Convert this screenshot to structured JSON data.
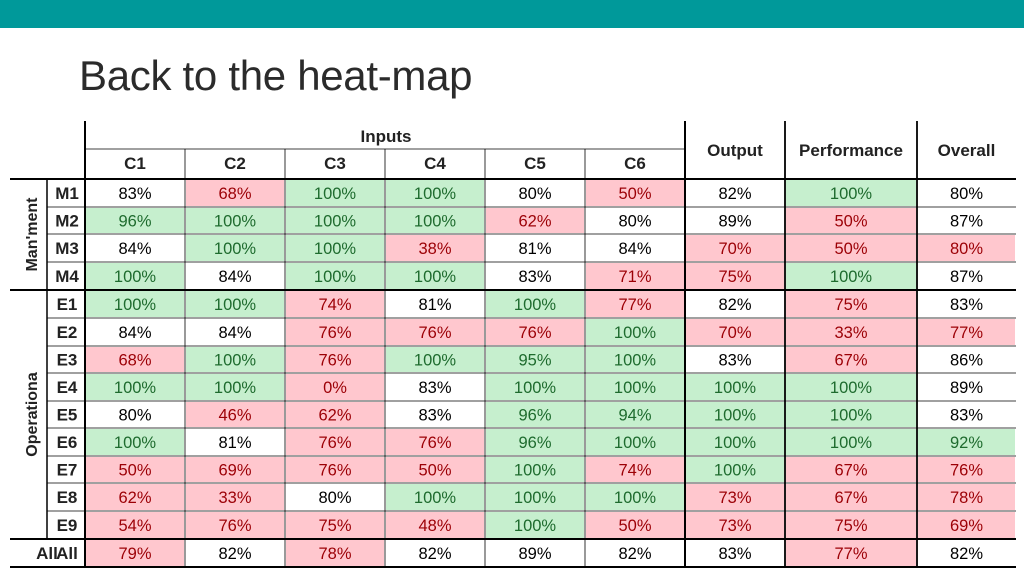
{
  "title": "Back to the heat-map",
  "chart_data": {
    "type": "heatmap",
    "header_group": "Inputs",
    "columns": [
      "C1",
      "C2",
      "C3",
      "C4",
      "C5",
      "C6",
      "Output",
      "Performance",
      "Overall"
    ],
    "row_groups": [
      {
        "name": "Man'ment",
        "rows": [
          "M1",
          "M2",
          "M3",
          "M4"
        ]
      },
      {
        "name": "Operationa",
        "rows": [
          "E1",
          "E2",
          "E3",
          "E4",
          "E5",
          "E6",
          "E7",
          "E8",
          "E9"
        ]
      },
      {
        "name": "",
        "rows": [
          "All"
        ]
      }
    ],
    "values": [
      [
        83,
        68,
        100,
        100,
        80,
        50,
        82,
        100,
        80
      ],
      [
        96,
        100,
        100,
        100,
        62,
        80,
        89,
        50,
        87
      ],
      [
        84,
        100,
        100,
        38,
        81,
        84,
        70,
        50,
        80
      ],
      [
        100,
        84,
        100,
        100,
        83,
        71,
        75,
        100,
        87
      ],
      [
        100,
        100,
        74,
        81,
        100,
        77,
        82,
        75,
        83
      ],
      [
        84,
        84,
        76,
        76,
        76,
        100,
        70,
        33,
        77
      ],
      [
        68,
        100,
        76,
        100,
        95,
        100,
        83,
        67,
        86
      ],
      [
        100,
        100,
        0,
        83,
        100,
        100,
        100,
        100,
        89
      ],
      [
        80,
        46,
        62,
        83,
        96,
        94,
        100,
        100,
        83
      ],
      [
        100,
        81,
        76,
        76,
        96,
        100,
        100,
        100,
        92
      ],
      [
        50,
        69,
        76,
        50,
        100,
        74,
        100,
        67,
        76
      ],
      [
        62,
        33,
        80,
        100,
        100,
        100,
        73,
        67,
        78
      ],
      [
        54,
        76,
        75,
        48,
        100,
        50,
        73,
        75,
        69
      ],
      [
        79,
        82,
        78,
        82,
        89,
        82,
        83,
        77,
        82
      ]
    ],
    "highlight": [
      [
        "n",
        "r",
        "g",
        "g",
        "n",
        "r",
        "n",
        "g",
        "n"
      ],
      [
        "g",
        "g",
        "g",
        "g",
        "r",
        "n",
        "n",
        "r",
        "n"
      ],
      [
        "n",
        "g",
        "g",
        "r",
        "n",
        "n",
        "r",
        "r",
        "r"
      ],
      [
        "g",
        "n",
        "g",
        "g",
        "n",
        "r",
        "r",
        "g",
        "n"
      ],
      [
        "g",
        "g",
        "r",
        "n",
        "g",
        "r",
        "n",
        "r",
        "n"
      ],
      [
        "n",
        "n",
        "r",
        "r",
        "r",
        "g",
        "r",
        "r",
        "r"
      ],
      [
        "r",
        "g",
        "r",
        "g",
        "g",
        "g",
        "n",
        "r",
        "n"
      ],
      [
        "g",
        "g",
        "r",
        "n",
        "g",
        "g",
        "g",
        "g",
        "n"
      ],
      [
        "n",
        "r",
        "r",
        "n",
        "g",
        "g",
        "g",
        "g",
        "n"
      ],
      [
        "g",
        "n",
        "r",
        "r",
        "g",
        "g",
        "g",
        "g",
        "g"
      ],
      [
        "r",
        "r",
        "r",
        "r",
        "g",
        "r",
        "g",
        "r",
        "r"
      ],
      [
        "r",
        "r",
        "n",
        "g",
        "g",
        "g",
        "r",
        "r",
        "r"
      ],
      [
        "r",
        "r",
        "r",
        "r",
        "g",
        "r",
        "r",
        "r",
        "r"
      ],
      [
        "r",
        "n",
        "r",
        "n",
        "n",
        "n",
        "n",
        "r",
        "n"
      ]
    ],
    "unit": "%",
    "colors": {
      "green_fill": "#c6efce",
      "green_text": "#1e6b2e",
      "red_fill": "#ffc7ce",
      "red_text": "#9c0006",
      "neutral_fill": "#ffffff",
      "neutral_text": "#000000",
      "header_bar": "#00999a"
    }
  }
}
